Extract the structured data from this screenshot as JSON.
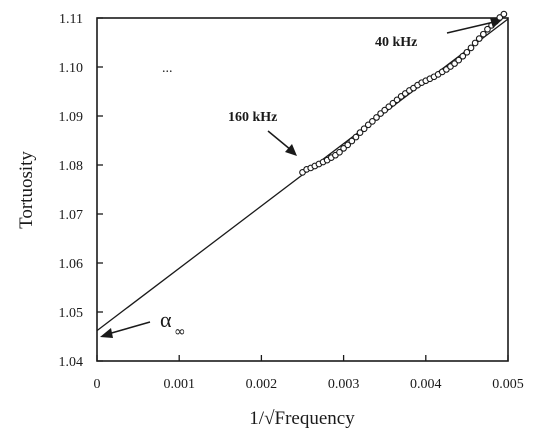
{
  "chart_data": {
    "type": "scatter",
    "xlabel": "1/√Frequency",
    "ylabel": "Tortuosity",
    "xlim": [
      0,
      0.005
    ],
    "ylim": [
      1.04,
      1.11
    ],
    "x_ticks": [
      "0",
      "0.001",
      "0.002",
      "0.003",
      "0.004",
      "0.005"
    ],
    "y_ticks": [
      "1.04",
      "1.05",
      "1.06",
      "1.07",
      "1.08",
      "1.09",
      "1.10",
      "1.11"
    ],
    "grid": false,
    "fit_line": {
      "x": [
        0,
        0.005
      ],
      "y": [
        1.0462,
        1.1098
      ]
    },
    "series": [
      {
        "marker": "open-circle",
        "points": [
          [
            0.0025,
            1.0785
          ],
          [
            0.00255,
            1.0791
          ],
          [
            0.0026,
            1.0794
          ],
          [
            0.00265,
            1.0798
          ],
          [
            0.0027,
            1.0802
          ],
          [
            0.00275,
            1.0806
          ],
          [
            0.0028,
            1.081
          ],
          [
            0.00285,
            1.0815
          ],
          [
            0.0029,
            1.082
          ],
          [
            0.00295,
            1.0826
          ],
          [
            0.003,
            1.0834
          ],
          [
            0.00305,
            1.0841
          ],
          [
            0.0031,
            1.0849
          ],
          [
            0.00315,
            1.0857
          ],
          [
            0.0032,
            1.0866
          ],
          [
            0.00325,
            1.0874
          ],
          [
            0.0033,
            1.0882
          ],
          [
            0.00335,
            1.0889
          ],
          [
            0.0034,
            1.0897
          ],
          [
            0.00345,
            1.0905
          ],
          [
            0.0035,
            1.0912
          ],
          [
            0.00355,
            1.0919
          ],
          [
            0.0036,
            1.0926
          ],
          [
            0.00365,
            1.0933
          ],
          [
            0.0037,
            1.094
          ],
          [
            0.00375,
            1.0946
          ],
          [
            0.0038,
            1.0952
          ],
          [
            0.00385,
            1.0957
          ],
          [
            0.0039,
            1.0963
          ],
          [
            0.00395,
            1.0968
          ],
          [
            0.004,
            1.0972
          ],
          [
            0.00405,
            1.0976
          ],
          [
            0.0041,
            1.098
          ],
          [
            0.00415,
            1.0985
          ],
          [
            0.0042,
            1.099
          ],
          [
            0.00425,
            1.0995
          ],
          [
            0.0043,
            1.1001
          ],
          [
            0.00435,
            1.1007
          ],
          [
            0.0044,
            1.1014
          ],
          [
            0.00445,
            1.1022
          ],
          [
            0.0045,
            1.103
          ],
          [
            0.00455,
            1.1039
          ],
          [
            0.0046,
            1.1049
          ],
          [
            0.00465,
            1.1058
          ],
          [
            0.0047,
            1.1067
          ],
          [
            0.00475,
            1.1077
          ],
          [
            0.0048,
            1.1085
          ],
          [
            0.00485,
            1.1093
          ],
          [
            0.0049,
            1.1101
          ],
          [
            0.00495,
            1.1108
          ]
        ]
      }
    ],
    "annotations": [
      {
        "text": "40 kHz",
        "x": 0.00495,
        "y": 1.1108
      },
      {
        "text": "160 kHz",
        "x": 0.0025,
        "y": 1.0785
      },
      {
        "text": "α",
        "subscript": "∞",
        "x": 0,
        "y": 1.0462
      }
    ]
  }
}
